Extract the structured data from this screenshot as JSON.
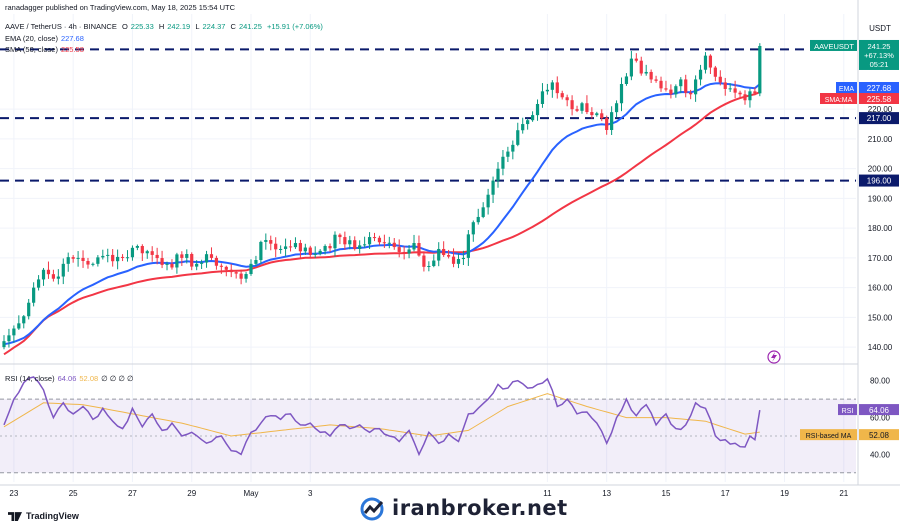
{
  "header": {
    "publisher": "ranadagger published on TradingView.com, May 18, 2025 15:54 UTC",
    "symbol": "AAVE / TetherUS · 4h · BINANCE",
    "o_label": "O",
    "o": "225.33",
    "h_label": "H",
    "h": "242.19",
    "l_label": "L",
    "l": "224.37",
    "c_label": "C",
    "c": "241.25",
    "change": "+15.91 (+7.06%)",
    "ema_label": "EMA (20, close)",
    "ema_value": "227.68",
    "sma_label": "SMA (50, close)",
    "sma_value": "225.58",
    "rsi_label": "RSI (14, close)",
    "rsi_value": "64.06",
    "rsi_ma_value": "52.08",
    "rsi_extra": "∅ ∅ ∅ ∅"
  },
  "branding": {
    "tv": "TradingView",
    "watermark": "iranbroker.net"
  },
  "colors": {
    "up": "#089981",
    "down": "#f23645",
    "ema": "#2962ff",
    "sma": "#f23645",
    "rsi": "#7e57c2",
    "rsi_ma": "#f0b64a",
    "level": "#0b1a6b"
  },
  "chart_data": [
    {
      "type": "candlestick",
      "currency": "USDT",
      "ylim": [
        135,
        252
      ],
      "yticks": [
        140,
        150,
        160,
        170,
        180,
        190,
        200,
        210,
        220
      ],
      "xticks": [
        {
          "label": "23",
          "x": 2
        },
        {
          "label": "25",
          "x": 14
        },
        {
          "label": "27",
          "x": 26
        },
        {
          "label": "29",
          "x": 38
        },
        {
          "label": "May",
          "x": 50
        },
        {
          "label": "3",
          "x": 62
        },
        {
          "label": "11",
          "x": 110
        },
        {
          "label": "13",
          "x": 122
        },
        {
          "label": "15",
          "x": 134
        },
        {
          "label": "17",
          "x": 146
        },
        {
          "label": "19",
          "x": 158
        },
        {
          "label": "21",
          "x": 170
        }
      ],
      "x_count": 176,
      "levels": [
        {
          "value": 240.11,
          "label": "240.11"
        },
        {
          "value": 217.0,
          "label": "217.00"
        },
        {
          "value": 196.0,
          "label": "196.00"
        }
      ],
      "price_labels": [
        {
          "name": "AAVEUSDT",
          "value": 241.25,
          "lines": [
            "241.25",
            "+67.13%",
            "05:21"
          ],
          "color": "#089981"
        },
        {
          "name": "EMA",
          "value": 227.68,
          "lines": [
            "227.68"
          ],
          "color": "#2962ff"
        },
        {
          "name": "SMA:MA",
          "value": 225.58,
          "lines": [
            "225.58"
          ],
          "color": "#f23645"
        }
      ],
      "series_ema_name": "EMA",
      "series_sma_name": "SMA:MA",
      "anchors": [
        {
          "x": 0,
          "c": 142
        },
        {
          "x": 3,
          "c": 148
        },
        {
          "x": 6,
          "c": 160
        },
        {
          "x": 8,
          "c": 166
        },
        {
          "x": 10,
          "c": 163
        },
        {
          "x": 12,
          "c": 168
        },
        {
          "x": 15,
          "c": 170
        },
        {
          "x": 18,
          "c": 168
        },
        {
          "x": 21,
          "c": 171
        },
        {
          "x": 24,
          "c": 170
        },
        {
          "x": 27,
          "c": 174
        },
        {
          "x": 30,
          "c": 171
        },
        {
          "x": 33,
          "c": 168
        },
        {
          "x": 36,
          "c": 170
        },
        {
          "x": 39,
          "c": 168
        },
        {
          "x": 42,
          "c": 170
        },
        {
          "x": 45,
          "c": 166
        },
        {
          "x": 48,
          "c": 163
        },
        {
          "x": 50,
          "c": 168
        },
        {
          "x": 53,
          "c": 176
        },
        {
          "x": 56,
          "c": 173
        },
        {
          "x": 59,
          "c": 175
        },
        {
          "x": 62,
          "c": 171
        },
        {
          "x": 65,
          "c": 174
        },
        {
          "x": 68,
          "c": 177
        },
        {
          "x": 71,
          "c": 173
        },
        {
          "x": 74,
          "c": 177
        },
        {
          "x": 77,
          "c": 175
        },
        {
          "x": 80,
          "c": 172
        },
        {
          "x": 83,
          "c": 175
        },
        {
          "x": 85,
          "c": 167
        },
        {
          "x": 88,
          "c": 173
        },
        {
          "x": 91,
          "c": 168
        },
        {
          "x": 93,
          "c": 170
        },
        {
          "x": 95,
          "c": 182
        },
        {
          "x": 97,
          "c": 187
        },
        {
          "x": 99,
          "c": 196
        },
        {
          "x": 101,
          "c": 204
        },
        {
          "x": 103,
          "c": 208
        },
        {
          "x": 105,
          "c": 215
        },
        {
          "x": 107,
          "c": 218
        },
        {
          "x": 109,
          "c": 226
        },
        {
          "x": 111,
          "c": 229
        },
        {
          "x": 113,
          "c": 224
        },
        {
          "x": 115,
          "c": 220
        },
        {
          "x": 117,
          "c": 222
        },
        {
          "x": 119,
          "c": 218
        },
        {
          "x": 121,
          "c": 217
        },
        {
          "x": 122,
          "c": 213
        },
        {
          "x": 124,
          "c": 222
        },
        {
          "x": 126,
          "c": 231
        },
        {
          "x": 127,
          "c": 237
        },
        {
          "x": 129,
          "c": 232
        },
        {
          "x": 131,
          "c": 230
        },
        {
          "x": 133,
          "c": 227
        },
        {
          "x": 135,
          "c": 225
        },
        {
          "x": 137,
          "c": 230
        },
        {
          "x": 139,
          "c": 225
        },
        {
          "x": 140,
          "c": 230
        },
        {
          "x": 142,
          "c": 238
        },
        {
          "x": 143,
          "c": 234
        },
        {
          "x": 145,
          "c": 229
        },
        {
          "x": 147,
          "c": 227
        },
        {
          "x": 149,
          "c": 225
        },
        {
          "x": 150,
          "c": 223
        },
        {
          "x": 151,
          "c": 226
        },
        {
          "x": 152,
          "c": 225.33
        },
        {
          "x": 153,
          "c": 241.25
        }
      ],
      "ema_start": 145,
      "sma_start": 139
    },
    {
      "type": "line",
      "name": "RSI",
      "ylim": [
        25,
        88
      ],
      "yticks": [
        40,
        60,
        80
      ],
      "band": [
        30,
        70
      ],
      "midline": 50,
      "rsi_label": {
        "name": "RSI",
        "value": 64.06
      },
      "ma_label": {
        "name": "RSI-based MA",
        "value": 52.08
      },
      "anchors": [
        {
          "x": 0,
          "v": 56
        },
        {
          "x": 2,
          "v": 70
        },
        {
          "x": 4,
          "v": 79
        },
        {
          "x": 6,
          "v": 82
        },
        {
          "x": 8,
          "v": 75
        },
        {
          "x": 10,
          "v": 60
        },
        {
          "x": 12,
          "v": 68
        },
        {
          "x": 14,
          "v": 62
        },
        {
          "x": 16,
          "v": 66
        },
        {
          "x": 18,
          "v": 59
        },
        {
          "x": 20,
          "v": 65
        },
        {
          "x": 22,
          "v": 58
        },
        {
          "x": 24,
          "v": 54
        },
        {
          "x": 26,
          "v": 65
        },
        {
          "x": 28,
          "v": 55
        },
        {
          "x": 30,
          "v": 62
        },
        {
          "x": 32,
          "v": 53
        },
        {
          "x": 34,
          "v": 57
        },
        {
          "x": 36,
          "v": 50
        },
        {
          "x": 38,
          "v": 52
        },
        {
          "x": 40,
          "v": 48
        },
        {
          "x": 42,
          "v": 47
        },
        {
          "x": 44,
          "v": 50
        },
        {
          "x": 46,
          "v": 42
        },
        {
          "x": 48,
          "v": 40
        },
        {
          "x": 50,
          "v": 52
        },
        {
          "x": 52,
          "v": 57
        },
        {
          "x": 54,
          "v": 61
        },
        {
          "x": 56,
          "v": 59
        },
        {
          "x": 58,
          "v": 62
        },
        {
          "x": 60,
          "v": 56
        },
        {
          "x": 62,
          "v": 57
        },
        {
          "x": 64,
          "v": 52
        },
        {
          "x": 66,
          "v": 50
        },
        {
          "x": 68,
          "v": 56
        },
        {
          "x": 70,
          "v": 54
        },
        {
          "x": 72,
          "v": 56
        },
        {
          "x": 74,
          "v": 52
        },
        {
          "x": 76,
          "v": 54
        },
        {
          "x": 78,
          "v": 50
        },
        {
          "x": 80,
          "v": 47
        },
        {
          "x": 82,
          "v": 53
        },
        {
          "x": 84,
          "v": 40
        },
        {
          "x": 86,
          "v": 52
        },
        {
          "x": 88,
          "v": 46
        },
        {
          "x": 90,
          "v": 51
        },
        {
          "x": 92,
          "v": 47
        },
        {
          "x": 94,
          "v": 62
        },
        {
          "x": 96,
          "v": 65
        },
        {
          "x": 98,
          "v": 70
        },
        {
          "x": 100,
          "v": 78
        },
        {
          "x": 102,
          "v": 76
        },
        {
          "x": 104,
          "v": 80
        },
        {
          "x": 106,
          "v": 76
        },
        {
          "x": 108,
          "v": 78
        },
        {
          "x": 110,
          "v": 81
        },
        {
          "x": 112,
          "v": 66
        },
        {
          "x": 114,
          "v": 70
        },
        {
          "x": 116,
          "v": 62
        },
        {
          "x": 118,
          "v": 63
        },
        {
          "x": 120,
          "v": 57
        },
        {
          "x": 122,
          "v": 46
        },
        {
          "x": 124,
          "v": 60
        },
        {
          "x": 126,
          "v": 70
        },
        {
          "x": 128,
          "v": 61
        },
        {
          "x": 130,
          "v": 67
        },
        {
          "x": 132,
          "v": 56
        },
        {
          "x": 134,
          "v": 62
        },
        {
          "x": 136,
          "v": 54
        },
        {
          "x": 138,
          "v": 56
        },
        {
          "x": 140,
          "v": 68
        },
        {
          "x": 142,
          "v": 65
        },
        {
          "x": 144,
          "v": 50
        },
        {
          "x": 146,
          "v": 48
        },
        {
          "x": 148,
          "v": 46
        },
        {
          "x": 150,
          "v": 44
        },
        {
          "x": 151,
          "v": 50
        },
        {
          "x": 152,
          "v": 48
        },
        {
          "x": 153,
          "v": 64.06
        }
      ],
      "ma_anchors": [
        {
          "x": 0,
          "v": 55
        },
        {
          "x": 8,
          "v": 68
        },
        {
          "x": 16,
          "v": 67
        },
        {
          "x": 26,
          "v": 62
        },
        {
          "x": 36,
          "v": 57
        },
        {
          "x": 46,
          "v": 50
        },
        {
          "x": 56,
          "v": 53
        },
        {
          "x": 66,
          "v": 56
        },
        {
          "x": 76,
          "v": 54
        },
        {
          "x": 86,
          "v": 50
        },
        {
          "x": 94,
          "v": 53
        },
        {
          "x": 102,
          "v": 66
        },
        {
          "x": 110,
          "v": 73
        },
        {
          "x": 118,
          "v": 66
        },
        {
          "x": 126,
          "v": 60
        },
        {
          "x": 134,
          "v": 60
        },
        {
          "x": 142,
          "v": 58
        },
        {
          "x": 150,
          "v": 51
        },
        {
          "x": 153,
          "v": 52.08
        }
      ]
    }
  ]
}
